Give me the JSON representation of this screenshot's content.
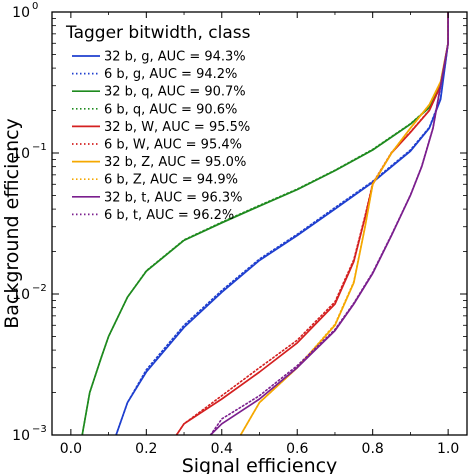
{
  "chart_data": {
    "type": "line",
    "xlabel": "Signal efficiency",
    "ylabel": "Background efficiency",
    "xlim": [
      -0.05,
      1.05
    ],
    "ylim": [
      0.001,
      1
    ],
    "yscale": "log",
    "grid": false,
    "legend_title": "Tagger bitwidth, class",
    "legend_position": "top-left",
    "x_ticks": [
      {
        "value": 0.0,
        "label": "0.0"
      },
      {
        "value": 0.2,
        "label": "0.2"
      },
      {
        "value": 0.4,
        "label": "0.4"
      },
      {
        "value": 0.6,
        "label": "0.6"
      },
      {
        "value": 0.8,
        "label": "0.8"
      },
      {
        "value": 1.0,
        "label": "1.0"
      }
    ],
    "y_ticks": [
      {
        "value": 0.001,
        "base": "10",
        "exp": "−3"
      },
      {
        "value": 0.01,
        "base": "10",
        "exp": "−2"
      },
      {
        "value": 0.1,
        "base": "10",
        "exp": "−1"
      },
      {
        "value": 1,
        "base": "10",
        "exp": "0"
      }
    ],
    "series": [
      {
        "name": "32 b, g, AUC = 94.3%",
        "color": "#1f3fcf",
        "style": "solid",
        "points": [
          [
            0.12,
            0.001
          ],
          [
            0.15,
            0.0017
          ],
          [
            0.2,
            0.0028
          ],
          [
            0.3,
            0.0058
          ],
          [
            0.4,
            0.0103
          ],
          [
            0.5,
            0.0173
          ],
          [
            0.6,
            0.026
          ],
          [
            0.7,
            0.04
          ],
          [
            0.8,
            0.062
          ],
          [
            0.9,
            0.103
          ],
          [
            0.95,
            0.15
          ],
          [
            0.98,
            0.24
          ],
          [
            1.0,
            0.6
          ],
          [
            1.0,
            1.0
          ]
        ]
      },
      {
        "name": "6 b, g, AUC = 94.2%",
        "color": "#1f3fcf",
        "style": "dotted",
        "points": [
          [
            0.12,
            0.001
          ],
          [
            0.15,
            0.0017
          ],
          [
            0.2,
            0.0029
          ],
          [
            0.3,
            0.006
          ],
          [
            0.4,
            0.0106
          ],
          [
            0.5,
            0.0177
          ],
          [
            0.6,
            0.0265
          ],
          [
            0.7,
            0.041
          ],
          [
            0.8,
            0.063
          ],
          [
            0.9,
            0.105
          ],
          [
            0.95,
            0.152
          ],
          [
            0.98,
            0.245
          ],
          [
            1.0,
            0.6
          ],
          [
            1.0,
            1.0
          ]
        ]
      },
      {
        "name": "32 b, q, AUC = 90.7%",
        "color": "#1e8a1e",
        "style": "solid",
        "points": [
          [
            0.03,
            0.001
          ],
          [
            0.05,
            0.002
          ],
          [
            0.08,
            0.0035
          ],
          [
            0.1,
            0.005
          ],
          [
            0.15,
            0.0095
          ],
          [
            0.2,
            0.0145
          ],
          [
            0.3,
            0.024
          ],
          [
            0.4,
            0.032
          ],
          [
            0.5,
            0.042
          ],
          [
            0.6,
            0.055
          ],
          [
            0.7,
            0.075
          ],
          [
            0.8,
            0.105
          ],
          [
            0.9,
            0.16
          ],
          [
            0.95,
            0.21
          ],
          [
            0.98,
            0.3
          ],
          [
            1.0,
            0.6
          ],
          [
            1.0,
            1.0
          ]
        ]
      },
      {
        "name": "6 b, q, AUC = 90.6%",
        "color": "#1e8a1e",
        "style": "dotted",
        "points": [
          [
            0.03,
            0.001
          ],
          [
            0.05,
            0.002
          ],
          [
            0.08,
            0.0035
          ],
          [
            0.1,
            0.005
          ],
          [
            0.15,
            0.0095
          ],
          [
            0.2,
            0.0146
          ],
          [
            0.3,
            0.0242
          ],
          [
            0.4,
            0.0323
          ],
          [
            0.5,
            0.0425
          ],
          [
            0.6,
            0.0555
          ],
          [
            0.7,
            0.0755
          ],
          [
            0.8,
            0.106
          ],
          [
            0.9,
            0.161
          ],
          [
            0.95,
            0.211
          ],
          [
            0.98,
            0.301
          ],
          [
            1.0,
            0.6
          ],
          [
            1.0,
            1.0
          ]
        ]
      },
      {
        "name": "32 b, W, AUC = 95.5%",
        "color": "#d42020",
        "style": "solid",
        "points": [
          [
            0.28,
            0.001
          ],
          [
            0.3,
            0.0012
          ],
          [
            0.4,
            0.0018
          ],
          [
            0.5,
            0.0028
          ],
          [
            0.6,
            0.0045
          ],
          [
            0.7,
            0.0085
          ],
          [
            0.75,
            0.017
          ],
          [
            0.78,
            0.035
          ],
          [
            0.8,
            0.06
          ],
          [
            0.85,
            0.1
          ],
          [
            0.9,
            0.14
          ],
          [
            0.95,
            0.2
          ],
          [
            0.98,
            0.3
          ],
          [
            1.0,
            0.6
          ],
          [
            1.0,
            1.0
          ]
        ]
      },
      {
        "name": "6 b, W, AUC = 95.4%",
        "color": "#d42020",
        "style": "dotted",
        "points": [
          [
            0.28,
            0.001
          ],
          [
            0.3,
            0.0012
          ],
          [
            0.4,
            0.0019
          ],
          [
            0.5,
            0.003
          ],
          [
            0.6,
            0.0047
          ],
          [
            0.7,
            0.0088
          ],
          [
            0.75,
            0.0175
          ],
          [
            0.78,
            0.036
          ],
          [
            0.8,
            0.061
          ],
          [
            0.85,
            0.101
          ],
          [
            0.9,
            0.141
          ],
          [
            0.95,
            0.201
          ],
          [
            0.98,
            0.301
          ],
          [
            1.0,
            0.6
          ],
          [
            1.0,
            1.0
          ]
        ]
      },
      {
        "name": "32 b, Z, AUC = 95.0%",
        "color": "#f5a800",
        "style": "solid",
        "points": [
          [
            0.45,
            0.001
          ],
          [
            0.5,
            0.0017
          ],
          [
            0.6,
            0.003
          ],
          [
            0.7,
            0.006
          ],
          [
            0.75,
            0.012
          ],
          [
            0.78,
            0.03
          ],
          [
            0.8,
            0.06
          ],
          [
            0.85,
            0.1
          ],
          [
            0.9,
            0.15
          ],
          [
            0.95,
            0.22
          ],
          [
            0.98,
            0.32
          ],
          [
            1.0,
            0.6
          ],
          [
            1.0,
            1.0
          ]
        ]
      },
      {
        "name": "6 b, Z, AUC = 94.9%",
        "color": "#f5a800",
        "style": "dotted",
        "points": [
          [
            0.45,
            0.001
          ],
          [
            0.5,
            0.0017
          ],
          [
            0.6,
            0.003
          ],
          [
            0.7,
            0.0061
          ],
          [
            0.75,
            0.0122
          ],
          [
            0.78,
            0.0302
          ],
          [
            0.8,
            0.0602
          ],
          [
            0.85,
            0.1
          ],
          [
            0.9,
            0.15
          ],
          [
            0.95,
            0.22
          ],
          [
            0.98,
            0.32
          ],
          [
            1.0,
            0.6
          ],
          [
            1.0,
            1.0
          ]
        ]
      },
      {
        "name": "32 b, t, AUC = 96.3%",
        "color": "#7b1f8e",
        "style": "solid",
        "points": [
          [
            0.37,
            0.001
          ],
          [
            0.4,
            0.0012
          ],
          [
            0.5,
            0.0018
          ],
          [
            0.6,
            0.003
          ],
          [
            0.7,
            0.0055
          ],
          [
            0.75,
            0.0085
          ],
          [
            0.8,
            0.014
          ],
          [
            0.85,
            0.026
          ],
          [
            0.9,
            0.05
          ],
          [
            0.93,
            0.08
          ],
          [
            0.96,
            0.15
          ],
          [
            0.98,
            0.3
          ],
          [
            1.0,
            0.6
          ],
          [
            1.0,
            1.0
          ]
        ]
      },
      {
        "name": "6 b, t, AUC = 96.2%",
        "color": "#7b1f8e",
        "style": "dotted",
        "points": [
          [
            0.37,
            0.001
          ],
          [
            0.4,
            0.0013
          ],
          [
            0.5,
            0.0019
          ],
          [
            0.6,
            0.0031
          ],
          [
            0.7,
            0.0056
          ],
          [
            0.75,
            0.0086
          ],
          [
            0.8,
            0.0142
          ],
          [
            0.85,
            0.0263
          ],
          [
            0.9,
            0.0503
          ],
          [
            0.93,
            0.0805
          ],
          [
            0.96,
            0.151
          ],
          [
            0.98,
            0.301
          ],
          [
            1.0,
            0.6
          ],
          [
            1.0,
            1.0
          ]
        ]
      }
    ]
  }
}
